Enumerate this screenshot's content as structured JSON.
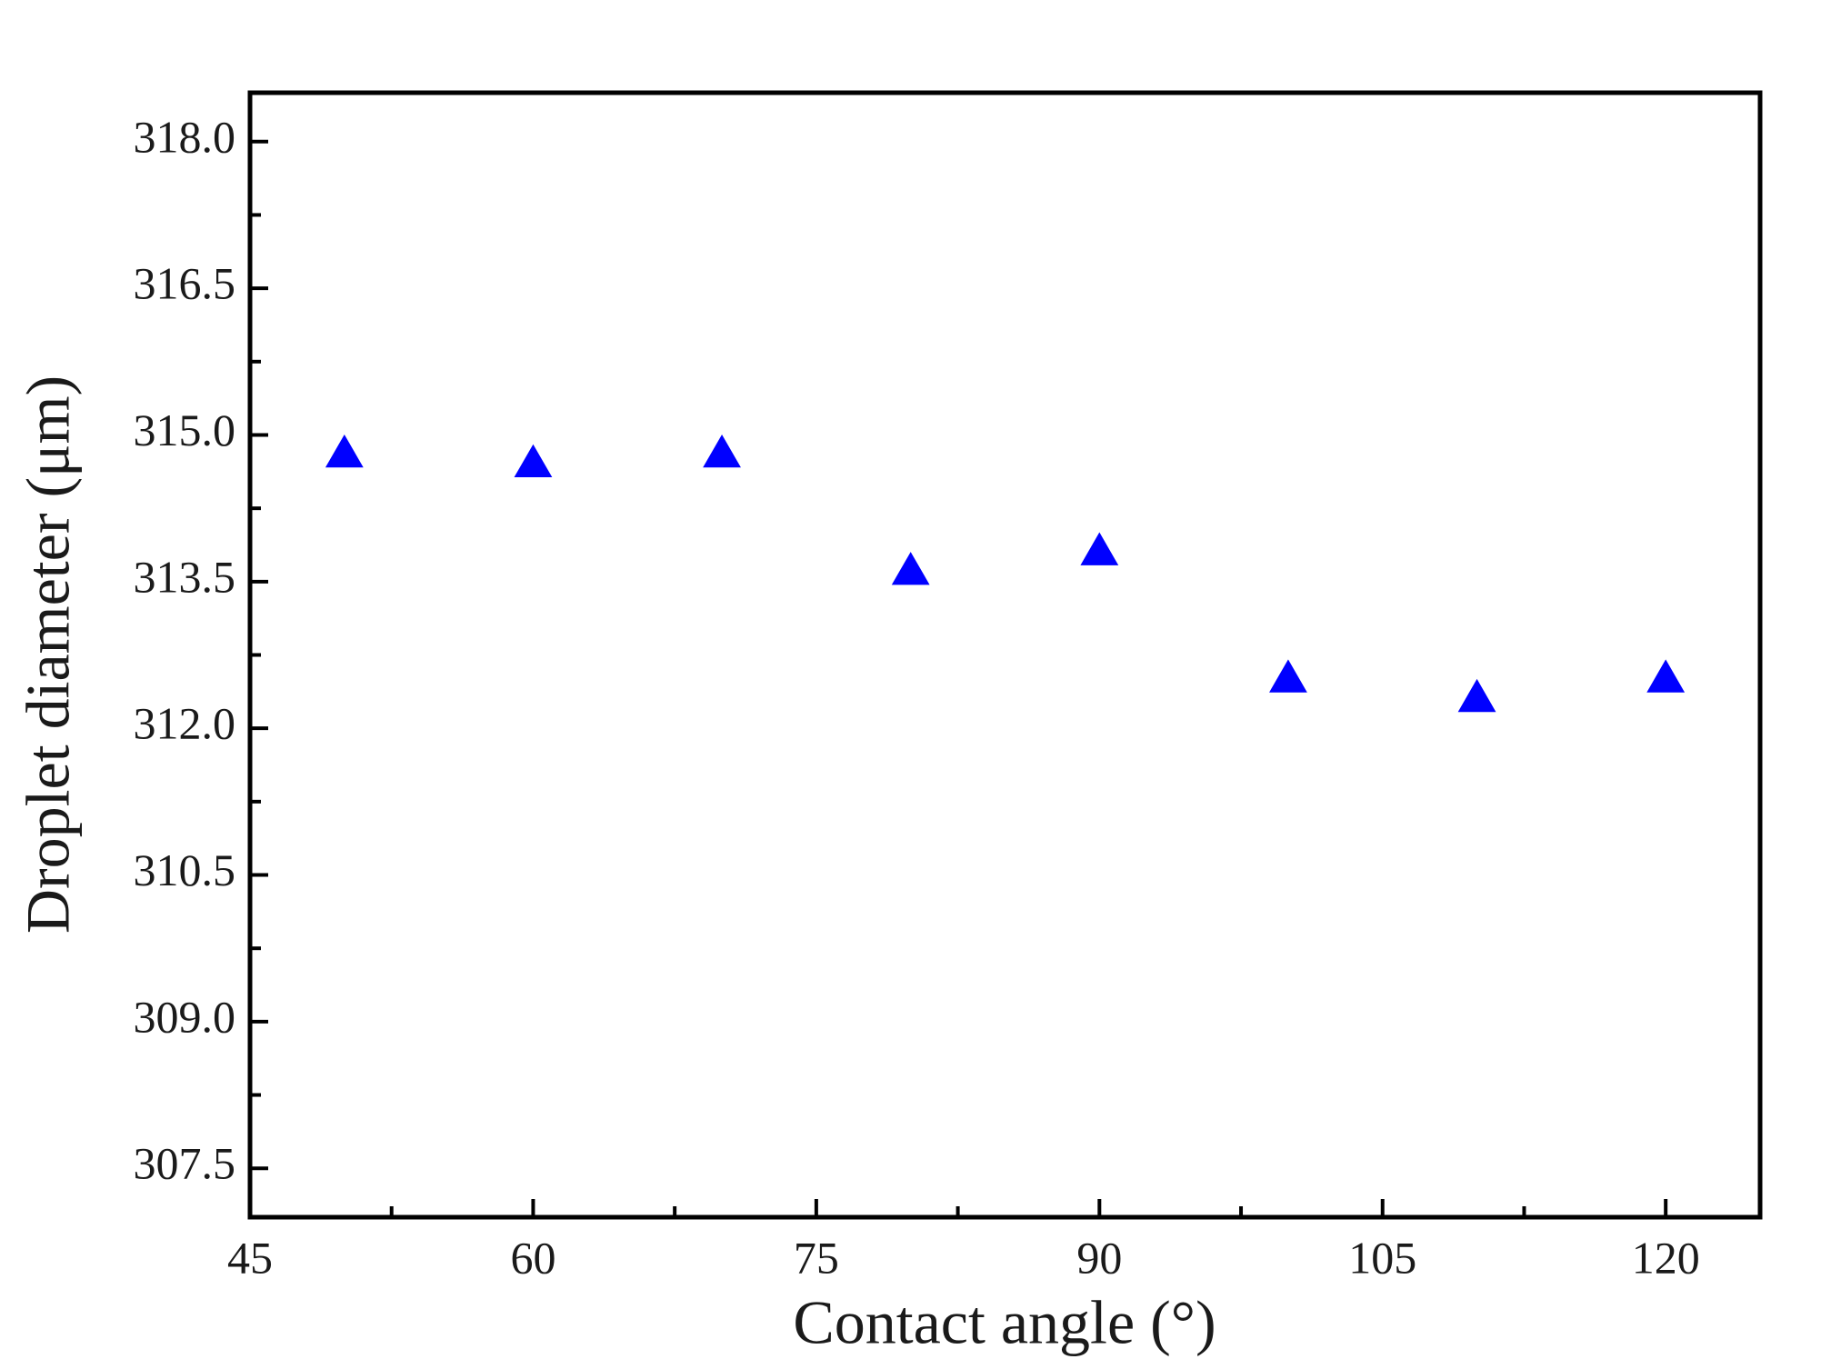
{
  "chart_data": {
    "type": "scatter",
    "x_label": "Contact angle (°)",
    "y_label": "Droplet diameter (μm)",
    "x": [
      50,
      60,
      70,
      80,
      90,
      100,
      110,
      120
    ],
    "series": [
      {
        "values": [
          314.8,
          314.7,
          314.8,
          313.6,
          313.8,
          312.5,
          312.3,
          312.5
        ],
        "color": "#0000ff",
        "marker": "triangle"
      }
    ],
    "xlim": [
      45,
      125
    ],
    "xticks": [
      45,
      60,
      75,
      90,
      105,
      120
    ],
    "xminorticks": [
      52.5,
      67.5,
      82.5,
      97.5,
      112.5
    ],
    "ylim": [
      307,
      318.5
    ],
    "yticks": [
      {
        "value": 307.5,
        "label": "307.5"
      },
      {
        "value": 309,
        "label": "309.0"
      },
      {
        "value": 310.5,
        "label": "310.5"
      },
      {
        "value": 312,
        "label": "312.0"
      },
      {
        "value": 313.5,
        "label": "313.5"
      },
      {
        "value": 315,
        "label": "315.0"
      },
      {
        "value": 316.5,
        "label": "316.5"
      },
      {
        "value": 318,
        "label": "318.0"
      }
    ],
    "yminorticks": [
      308.25,
      309.75,
      311.25,
      312.75,
      314.25,
      315.75,
      317.25
    ],
    "grid": false
  }
}
